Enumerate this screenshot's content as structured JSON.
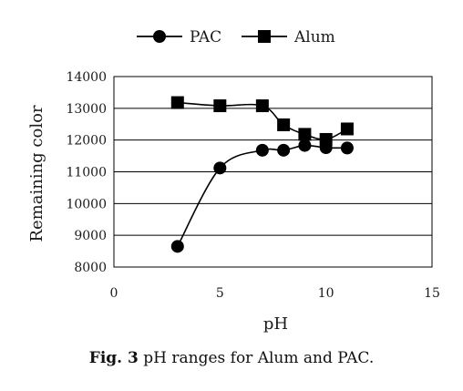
{
  "caption": {
    "label": "Fig. 3",
    "text": " pH ranges for Alum and PAC."
  },
  "chart_data": {
    "type": "line",
    "title": "",
    "xlabel": "pH",
    "ylabel": "Remaining color",
    "xlim": [
      0,
      15
    ],
    "ylim": [
      8000,
      14000
    ],
    "xticks": [
      0,
      5,
      10,
      15
    ],
    "yticks": [
      8000,
      9000,
      10000,
      11000,
      12000,
      13000,
      14000
    ],
    "grid": "horizontal",
    "legend_position": "top",
    "series": [
      {
        "name": "PAC",
        "marker": "circle",
        "color": "#000000",
        "x": [
          3,
          5,
          7,
          8,
          9,
          10,
          11
        ],
        "y": [
          8650,
          11120,
          11680,
          11680,
          11830,
          11760,
          11750
        ]
      },
      {
        "name": "Alum",
        "marker": "square",
        "color": "#000000",
        "x": [
          3,
          5,
          7,
          8,
          9,
          10,
          11
        ],
        "y": [
          13180,
          13080,
          13080,
          12480,
          12180,
          12020,
          12350
        ]
      }
    ]
  }
}
